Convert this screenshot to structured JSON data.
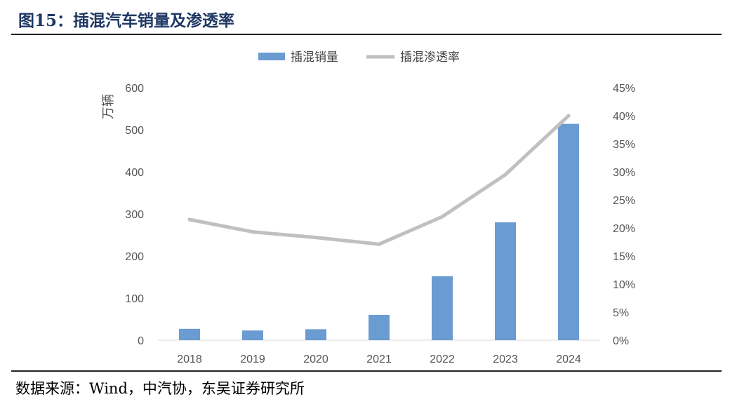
{
  "figure": {
    "title": "图15：插混汽车销量及渗透率",
    "source": "数据来源：Wind，中汽协，东吴证券研究所"
  },
  "colors": {
    "bar": "#6a9bd1",
    "line": "#c0c0c0",
    "title": "#1f3864"
  },
  "chart_data": {
    "type": "bar+line",
    "title": "",
    "categories": [
      "2018",
      "2019",
      "2020",
      "2021",
      "2022",
      "2023",
      "2024"
    ],
    "series": [
      {
        "name": "插混销量",
        "type": "bar",
        "axis": "left",
        "values": [
          27,
          23,
          26,
          60,
          152,
          280,
          514
        ]
      },
      {
        "name": "插混渗透率",
        "type": "line",
        "axis": "right",
        "values": [
          21.5,
          19.3,
          18.3,
          17.1,
          22,
          29.5,
          40
        ]
      }
    ],
    "ylabel": "万辆",
    "ylim": [
      0,
      600
    ],
    "yticks": [
      0,
      100,
      200,
      300,
      400,
      500,
      600
    ],
    "y2lim": [
      0,
      45
    ],
    "y2ticks": [
      "0%",
      "5%",
      "10%",
      "15%",
      "20%",
      "25%",
      "30%",
      "35%",
      "40%",
      "45%"
    ],
    "legend_position": "top-center",
    "grid": false
  }
}
